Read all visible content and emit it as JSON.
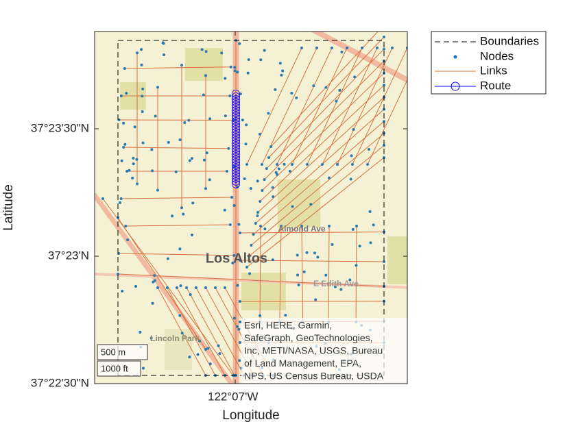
{
  "axes": {
    "xlabel": "Longitude",
    "ylabel": "Latitude",
    "xticks": [
      "122°07'W"
    ],
    "yticks": [
      "37°23'30\"N",
      "37°23'N",
      "37°22'30\"N"
    ]
  },
  "legend": {
    "entries": [
      "Boundaries",
      "Nodes",
      "Links",
      "Route"
    ]
  },
  "map_labels": [
    "Los Altos",
    "Almond Ave",
    "E Edith Ave",
    "Lincoln Park"
  ],
  "scalebar": [
    "500 m",
    "1000 ft"
  ],
  "attribution": [
    "Esri, HERE, Garmin,",
    "SafeGraph, GeoTechnologies,",
    "Inc, METI/NASA, USGS, Bureau",
    "of Land Management, EPA,",
    "NPS, US Census Bureau, USDA"
  ]
}
